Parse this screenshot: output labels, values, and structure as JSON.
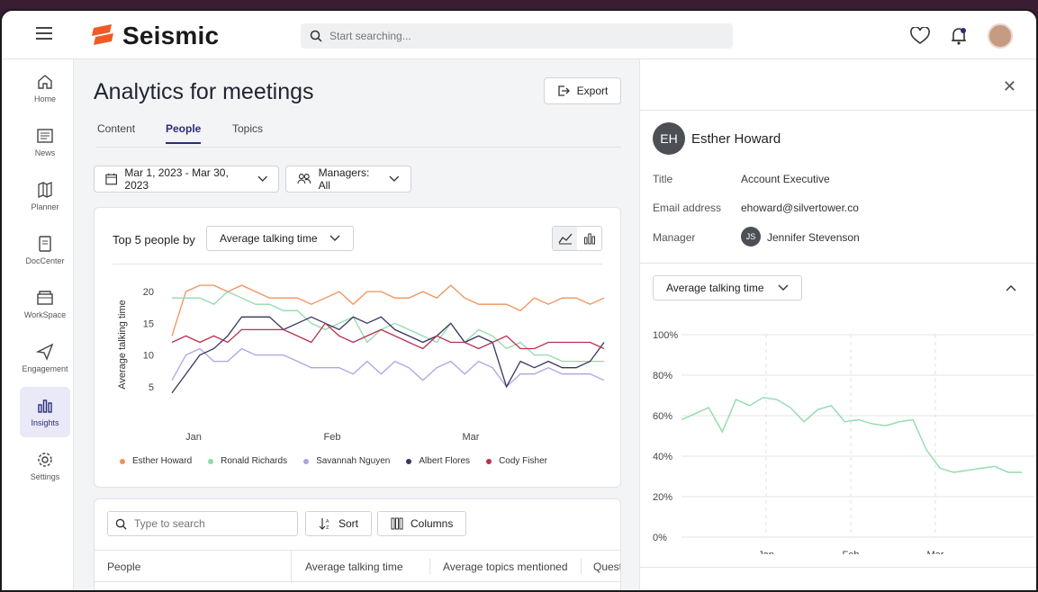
{
  "app": {
    "logo_text": "Seismic"
  },
  "search": {
    "placeholder": "Start searching..."
  },
  "sidebar": {
    "items": [
      {
        "label": "Home",
        "icon": "home-icon"
      },
      {
        "label": "News",
        "icon": "news-icon"
      },
      {
        "label": "Planner",
        "icon": "planner-icon"
      },
      {
        "label": "DocCenter",
        "icon": "doc-icon"
      },
      {
        "label": "WorkSpace",
        "icon": "workspace-icon"
      },
      {
        "label": "Engagement",
        "icon": "engagement-icon"
      },
      {
        "label": "Insights",
        "icon": "insights-icon",
        "active": true
      },
      {
        "label": "Settings",
        "icon": "settings-icon"
      }
    ]
  },
  "main": {
    "title": "Analytics for meetings",
    "export_label": "Export",
    "tabs": [
      {
        "label": "Content"
      },
      {
        "label": "People",
        "active": true
      },
      {
        "label": "Topics"
      }
    ],
    "filters": {
      "date_range": "Mar 1, 2023 - Mar 30, 2023",
      "managers": "Managers: All"
    },
    "chart_card": {
      "heading": "Top 5 people by",
      "metric": "Average talking time"
    },
    "table": {
      "search_placeholder": "Type to search",
      "sort_label": "Sort",
      "columns_label": "Columns",
      "headers": [
        "People",
        "Average talking time",
        "Average topics mentioned",
        "Quest"
      ]
    }
  },
  "panel": {
    "person": {
      "initials": "EH",
      "name": "Esther Howard"
    },
    "fields": [
      {
        "label": "Title",
        "value": "Account Executive"
      },
      {
        "label": "Email address",
        "value": "ehoward@silvertower.co"
      },
      {
        "label": "Manager",
        "value": "Jennifer Stevenson",
        "initials": "JS"
      }
    ],
    "metric": "Average talking time"
  },
  "colors": {
    "brand": "#f15a24",
    "accent": "#2b2d7a",
    "esther": "#f0915a",
    "ronald": "#8fdcaa",
    "savannah": "#a9a5e6",
    "albert": "#3b3560",
    "cody": "#b8324f"
  },
  "chart_data": [
    {
      "type": "line",
      "ylabel": "Average talking time",
      "xlabel": "",
      "x_ticks": [
        "Jan",
        "Feb",
        "Mar"
      ],
      "y_ticks": [
        5,
        10,
        15,
        20
      ],
      "ylim": [
        0,
        23
      ],
      "legend_placement": "bottom",
      "series": [
        {
          "name": "Esther Howard",
          "color": "#f0915a",
          "values": [
            13,
            20,
            21,
            21,
            20,
            21,
            20,
            19,
            19,
            19,
            18,
            19,
            20,
            18,
            20,
            20,
            19,
            19,
            20,
            19,
            21,
            19,
            18,
            18,
            18,
            17,
            19,
            18,
            19,
            19,
            18,
            19
          ]
        },
        {
          "name": "Ronald Richards",
          "color": "#8fdcaa",
          "values": [
            19,
            19,
            19,
            18,
            20,
            19,
            18,
            18,
            17,
            17,
            15,
            14,
            15,
            16,
            12,
            14,
            15,
            14,
            13,
            12,
            15,
            12,
            14,
            13,
            11,
            12,
            10,
            10,
            9,
            9,
            9,
            9
          ]
        },
        {
          "name": "Savannah Nguyen",
          "color": "#a9a5e6",
          "values": [
            6,
            10,
            11,
            9,
            9,
            11,
            10,
            10,
            10,
            9,
            8,
            8,
            8,
            7,
            9,
            7,
            9,
            8,
            6,
            8,
            9,
            7,
            9,
            8,
            5,
            7,
            7,
            8,
            7,
            7,
            7,
            6
          ]
        },
        {
          "name": "Albert Flores",
          "color": "#3b3560",
          "values": [
            4,
            7,
            10,
            11,
            13,
            16,
            16,
            16,
            14,
            15,
            16,
            15,
            14,
            16,
            15,
            16,
            14,
            13,
            12,
            13,
            15,
            12,
            13,
            12,
            5,
            9,
            8,
            9,
            8,
            8,
            9,
            12
          ]
        },
        {
          "name": "Cody Fisher",
          "color": "#b8324f",
          "values": [
            12,
            13,
            12,
            13,
            12,
            14,
            14,
            14,
            14,
            13,
            12,
            15,
            13,
            12,
            13,
            14,
            13,
            12,
            11,
            13,
            12,
            12,
            11,
            12,
            13,
            11,
            11,
            12,
            12,
            12,
            12,
            11
          ]
        }
      ]
    },
    {
      "type": "line",
      "xlabel": "",
      "ylabel": "",
      "x_ticks": [
        "Jan",
        "Feb",
        "Mar"
      ],
      "y_ticks": [
        "0%",
        "20%",
        "40%",
        "60%",
        "80%",
        "100%"
      ],
      "ylim": [
        0,
        100
      ],
      "grid": true,
      "series": [
        {
          "color": "#8fdcaa",
          "values": [
            58,
            61,
            64,
            52,
            68,
            65,
            69,
            68,
            64,
            57,
            63,
            65,
            57,
            58,
            56,
            55,
            57,
            58,
            43,
            34,
            32,
            33,
            34,
            35,
            32,
            32
          ]
        }
      ]
    }
  ]
}
